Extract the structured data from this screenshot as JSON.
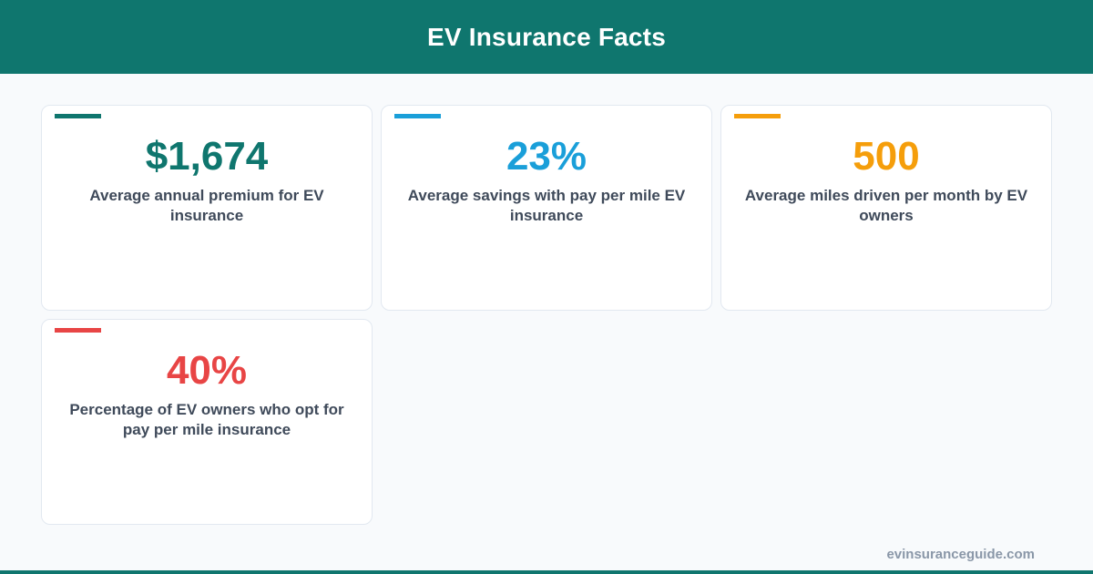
{
  "header": {
    "title": "EV Insurance Facts"
  },
  "stats": [
    {
      "value": "$1,674",
      "description": "Average annual premium for EV insurance",
      "color": "#0f766e"
    },
    {
      "value": "23%",
      "description": "Average savings with pay per mile EV insurance",
      "color": "#1a9fd9"
    },
    {
      "value": "500",
      "description": "Average miles driven per month by EV owners",
      "color": "#f59e0b"
    },
    {
      "value": "40%",
      "description": "Percentage of EV owners who opt for pay per mile insurance",
      "color": "#e84545"
    }
  ],
  "footer": {
    "url": "evinsuranceguide.com"
  },
  "colors": {
    "header_bg": "#0f766e",
    "page_bg": "#f8fafc"
  }
}
